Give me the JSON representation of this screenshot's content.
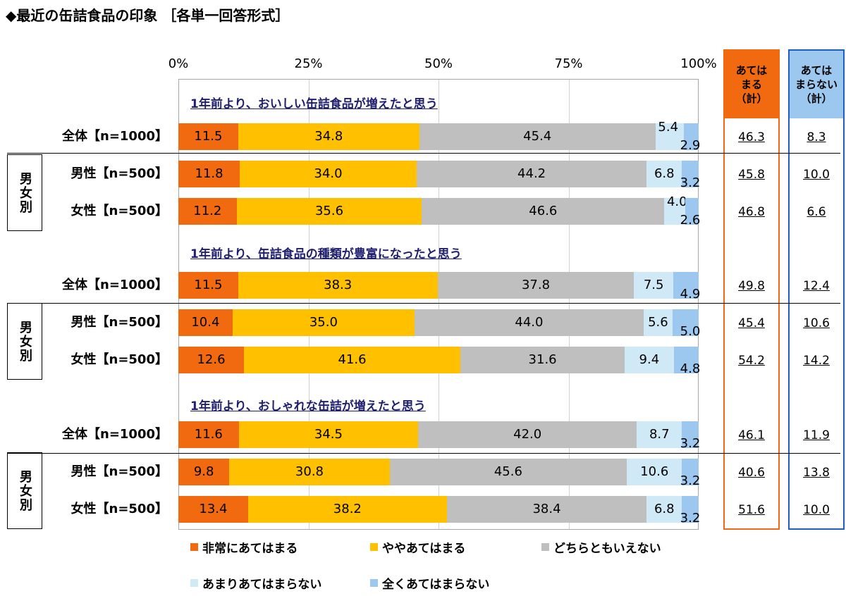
{
  "title": "◆最近の缶詰食品の印象 ［各単一回答形式］",
  "ticks": [
    "0%",
    "25%",
    "50%",
    "75%",
    "100%"
  ],
  "summary_headers": {
    "agree": "あては\nまる\n（計）",
    "disagree": "あては\nまらない\n（計）"
  },
  "colors": {
    "very": "#f26a10",
    "somewhat": "#ffc000",
    "neither": "#bfbfbf",
    "not_much": "#cfe9f7",
    "not_at_all": "#9cc8ef",
    "agree_border": "#f26a10",
    "agree_fill": "#f26a10",
    "disagree_border": "#1f5fc4",
    "disagree_fill": "#9cc8ef"
  },
  "group_label": "男女別",
  "legend": [
    "非常にあてはまる",
    "ややあてはまる",
    "どちらともいえない",
    "あまりあてはまらない",
    "全くあてはまらない"
  ],
  "chart_data": {
    "type": "bar",
    "orientation": "horizontal-stacked-100",
    "xlim": [
      0,
      100
    ],
    "series": [
      {
        "name": "非常にあてはまる"
      },
      {
        "name": "ややあてはまる"
      },
      {
        "name": "どちらともいえない"
      },
      {
        "name": "あまりあてはまらない"
      },
      {
        "name": "全くあてはまらない"
      }
    ],
    "sections": [
      {
        "subtitle": "1年前より、おいしい缶詰食品が増えたと思う",
        "rows": [
          {
            "label": "全体【n=1000】",
            "values": [
              11.5,
              34.8,
              45.4,
              5.4,
              2.9
            ],
            "agree_total": "46.3",
            "disagree_total": "8.3"
          },
          {
            "label": "男性【n=500】",
            "values": [
              11.8,
              34.0,
              44.2,
              6.8,
              3.2
            ],
            "agree_total": "45.8",
            "disagree_total": "10.0"
          },
          {
            "label": "女性【n=500】",
            "values": [
              11.2,
              35.6,
              46.6,
              4.0,
              2.6
            ],
            "agree_total": "46.8",
            "disagree_total": "6.6"
          }
        ]
      },
      {
        "subtitle": "1年前より、缶詰食品の種類が豊富になったと思う",
        "rows": [
          {
            "label": "全体【n=1000】",
            "values": [
              11.5,
              38.3,
              37.8,
              7.5,
              4.9
            ],
            "agree_total": "49.8",
            "disagree_total": "12.4"
          },
          {
            "label": "男性【n=500】",
            "values": [
              10.4,
              35.0,
              44.0,
              5.6,
              5.0
            ],
            "agree_total": "45.4",
            "disagree_total": "10.6"
          },
          {
            "label": "女性【n=500】",
            "values": [
              12.6,
              41.6,
              31.6,
              9.4,
              4.8
            ],
            "agree_total": "54.2",
            "disagree_total": "14.2"
          }
        ]
      },
      {
        "subtitle": "1年前より、おしゃれな缶詰が増えたと思う",
        "rows": [
          {
            "label": "全体【n=1000】",
            "values": [
              11.6,
              34.5,
              42.0,
              8.7,
              3.2
            ],
            "agree_total": "46.1",
            "disagree_total": "11.9"
          },
          {
            "label": "男性【n=500】",
            "values": [
              9.8,
              30.8,
              45.6,
              10.6,
              3.2
            ],
            "agree_total": "40.6",
            "disagree_total": "13.8"
          },
          {
            "label": "女性【n=500】",
            "values": [
              13.4,
              38.2,
              38.4,
              6.8,
              3.2
            ],
            "agree_total": "51.6",
            "disagree_total": "10.0"
          }
        ]
      }
    ]
  }
}
